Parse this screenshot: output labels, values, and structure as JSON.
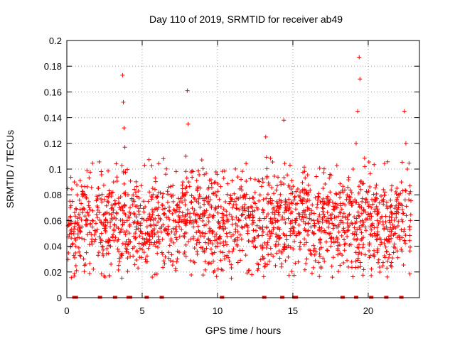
{
  "chart_data": {
    "type": "scatter",
    "title": "Day 110 of 2019, SRMTID for receiver ab49",
    "xlabel": "GPS time / hours",
    "ylabel": "SRMTID / TECUs",
    "xlim": [
      0,
      23.4
    ],
    "ylim": [
      0,
      0.2
    ],
    "xticks": [
      0,
      5,
      10,
      15,
      20
    ],
    "yticks": [
      0,
      0.02,
      0.04,
      0.06,
      0.08,
      0.1,
      0.12,
      0.14,
      0.16,
      0.18,
      0.2
    ],
    "ytick_labels": [
      "0",
      "0.02",
      "0.04",
      "0.06",
      "0.08",
      "0.1",
      "0.12",
      "0.14",
      "0.16",
      "0.18",
      "0.2"
    ],
    "grid": true,
    "marker": "+",
    "color": "#ff0000",
    "series": [
      {
        "name": "SRMTID",
        "note": "~1800 points, values mostly 0.02-0.10 TECU, baseline ~0.06; representative sample listed",
        "baseline_mean": 0.06,
        "x": [
          0.1,
          0.2,
          0.3,
          0.5,
          0.6,
          0.8,
          1.0,
          1.1,
          1.3,
          1.5,
          1.7,
          1.9,
          2.1,
          2.3,
          2.5,
          2.7,
          2.9,
          3.1,
          3.3,
          3.5,
          3.7,
          3.75,
          3.8,
          3.85,
          3.9,
          4.0,
          4.1,
          4.2,
          4.4,
          4.6,
          4.8,
          5.0,
          5.1,
          5.3,
          5.5,
          5.7,
          5.9,
          6.1,
          6.3,
          6.5,
          6.7,
          6.9,
          7.1,
          7.3,
          7.5,
          7.7,
          7.9,
          8.0,
          8.05,
          8.1,
          8.2,
          8.4,
          8.6,
          8.8,
          9.0,
          9.2,
          9.4,
          9.6,
          9.8,
          10.0,
          10.2,
          10.4,
          10.6,
          10.8,
          11.0,
          11.2,
          11.4,
          11.6,
          11.8,
          12.0,
          12.2,
          12.4,
          12.6,
          12.8,
          13.0,
          13.2,
          13.4,
          13.6,
          13.8,
          14.0,
          14.2,
          14.4,
          14.6,
          14.8,
          15.0,
          15.2,
          15.4,
          15.6,
          15.8,
          16.0,
          16.2,
          16.4,
          16.6,
          16.8,
          17.0,
          17.2,
          17.4,
          17.6,
          17.8,
          18.0,
          18.2,
          18.4,
          18.6,
          18.8,
          19.0,
          19.2,
          19.3,
          19.4,
          19.45,
          19.5,
          19.6,
          19.8,
          20.0,
          20.2,
          20.4,
          20.6,
          20.8,
          21.0,
          21.2,
          21.4,
          21.6,
          21.8,
          22.0,
          22.2,
          22.4,
          22.5,
          22.6,
          22.8
        ],
        "y": [
          0.06,
          0.075,
          0.05,
          0.09,
          0.04,
          0.065,
          0.055,
          0.08,
          0.035,
          0.07,
          0.06,
          0.045,
          0.085,
          0.05,
          0.065,
          0.075,
          0.04,
          0.09,
          0.055,
          0.07,
          0.173,
          0.152,
          0.132,
          0.117,
          0.08,
          0.06,
          0.045,
          0.07,
          0.08,
          0.055,
          0.065,
          0.05,
          0.075,
          0.06,
          0.045,
          0.085,
          0.04,
          0.07,
          0.055,
          0.065,
          0.05,
          0.08,
          0.06,
          0.045,
          0.07,
          0.09,
          0.11,
          0.161,
          0.135,
          0.09,
          0.06,
          0.055,
          0.075,
          0.08,
          0.065,
          0.05,
          0.045,
          0.07,
          0.035,
          0.04,
          0.055,
          0.06,
          0.05,
          0.065,
          0.07,
          0.045,
          0.06,
          0.055,
          0.08,
          0.05,
          0.065,
          0.04,
          0.07,
          0.06,
          0.055,
          0.125,
          0.075,
          0.05,
          0.065,
          0.06,
          0.09,
          0.138,
          0.045,
          0.07,
          0.055,
          0.06,
          0.05,
          0.075,
          0.065,
          0.08,
          0.055,
          0.06,
          0.07,
          0.045,
          0.085,
          0.06,
          0.05,
          0.065,
          0.07,
          0.055,
          0.06,
          0.045,
          0.08,
          0.075,
          0.1,
          0.12,
          0.145,
          0.187,
          0.17,
          0.09,
          0.06,
          0.055,
          0.065,
          0.07,
          0.05,
          0.06,
          0.045,
          0.075,
          0.055,
          0.06,
          0.065,
          0.05,
          0.07,
          0.09,
          0.145,
          0.12,
          0.1,
          0.06
        ]
      }
    ],
    "zero_points_x": [
      0.5,
      0.6,
      2.2,
      3.2,
      4.1,
      4.2,
      5.3,
      6.3,
      10.3,
      13.1,
      14.3,
      15.1,
      15.2,
      18.3,
      19.2,
      20.2,
      21.2,
      22.2
    ]
  }
}
